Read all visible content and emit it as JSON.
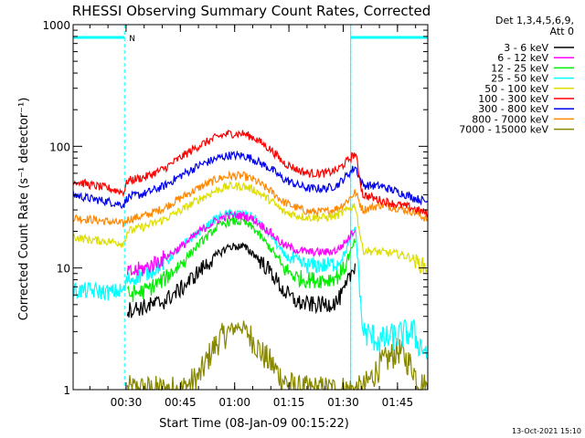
{
  "chart_data": {
    "type": "line",
    "title": "RHESSI Observing Summary Count Rates, Corrected",
    "xlabel": "Start Time (08-Jan-09 00:15:22)",
    "ylabel": "Corrected Count Rate (s⁻¹ detector⁻¹)",
    "y_scale": "log",
    "ylim": [
      1,
      1000
    ],
    "xlim_minutes": [
      0,
      98
    ],
    "x_ticks": [
      {
        "t": 14.63,
        "label": "00:30"
      },
      {
        "t": 29.63,
        "label": "00:45"
      },
      {
        "t": 44.63,
        "label": "01:00"
      },
      {
        "t": 59.63,
        "label": "01:15"
      },
      {
        "t": 74.63,
        "label": "01:30"
      },
      {
        "t": 89.63,
        "label": "01:45"
      }
    ],
    "y_ticks": [
      {
        "v": 1,
        "label": "1"
      },
      {
        "v": 10,
        "label": "10"
      },
      {
        "v": 100,
        "label": "100"
      },
      {
        "v": 1000,
        "label": "1000"
      }
    ],
    "detectors_label": "Det 1,3,4,5,6,9,",
    "attenuator_label": "Att 0",
    "legend_position": "right",
    "night_marker_label": "N",
    "timestamp": "13-Oct-2021 15:10",
    "series": [
      {
        "name": "3 - 6 keV",
        "color": "#000000",
        "x": [
          15,
          20,
          25,
          30,
          35,
          40,
          43,
          47,
          50,
          55,
          58,
          62,
          65,
          70,
          73,
          75,
          78
        ],
        "values": [
          4.5,
          4.8,
          5.3,
          6.8,
          9.5,
          13,
          15,
          15,
          13,
          9,
          6.5,
          5.2,
          5,
          5,
          5.3,
          6.5,
          11
        ]
      },
      {
        "name": "6 - 12 keV",
        "color": "#ff00ff",
        "x": [
          15,
          20,
          25,
          30,
          35,
          40,
          43,
          47,
          50,
          55,
          58,
          62,
          65,
          70,
          73,
          75,
          78
        ],
        "values": [
          9,
          10,
          12,
          15,
          20,
          25,
          27,
          27,
          25,
          19,
          15.5,
          14,
          13.5,
          13.5,
          14,
          16,
          21
        ]
      },
      {
        "name": "12 - 25 keV",
        "color": "#00ee00",
        "x": [
          15,
          20,
          25,
          30,
          35,
          40,
          43,
          47,
          50,
          55,
          58,
          62,
          65,
          70,
          73,
          75,
          78
        ],
        "values": [
          6,
          6.5,
          8,
          11,
          16,
          22,
          24,
          24,
          21,
          14,
          10,
          8.3,
          8,
          8,
          8.5,
          10,
          17
        ]
      },
      {
        "name": "25 - 50 keV",
        "color": "#00ffff",
        "x": [
          0,
          5,
          10,
          14,
          15,
          20,
          25,
          30,
          35,
          40,
          43,
          47,
          50,
          55,
          58,
          62,
          65,
          70,
          73,
          75,
          78,
          80,
          85,
          90,
          94,
          95,
          98
        ],
        "values": [
          6.5,
          6.5,
          6.3,
          6.5,
          8,
          9,
          11,
          15,
          20,
          26,
          28,
          28,
          26,
          18,
          13,
          11,
          10.5,
          10.5,
          11,
          13,
          22,
          3,
          2.5,
          2.8,
          3,
          2.5,
          2
        ]
      },
      {
        "name": "50 - 100 keV",
        "color": "#dddd00",
        "x": [
          0,
          5,
          10,
          14,
          15,
          20,
          25,
          30,
          35,
          40,
          43,
          47,
          50,
          55,
          58,
          62,
          65,
          70,
          73,
          75,
          78,
          80,
          85,
          90,
          94,
          95,
          98
        ],
        "values": [
          18,
          17,
          16.5,
          16,
          20,
          22,
          25,
          30,
          37,
          44,
          47,
          47,
          44,
          35,
          29,
          27,
          26,
          26,
          27,
          29,
          33,
          14,
          13.5,
          13,
          12,
          11,
          10
        ]
      },
      {
        "name": "100 - 300 keV",
        "color": "#ff0000",
        "x": [
          0,
          5,
          10,
          14,
          15,
          20,
          25,
          30,
          35,
          40,
          43,
          47,
          50,
          55,
          58,
          62,
          65,
          70,
          73,
          75,
          78,
          80,
          85,
          90,
          94,
          95,
          98
        ],
        "values": [
          52,
          48,
          45,
          42,
          52,
          56,
          65,
          82,
          102,
          120,
          127,
          127,
          118,
          92,
          74,
          64,
          60,
          60,
          64,
          72,
          88,
          40,
          36,
          33,
          31,
          30,
          28
        ]
      },
      {
        "name": "300 - 800 keV",
        "color": "#0000ee",
        "x": [
          0,
          5,
          10,
          14,
          15,
          20,
          25,
          30,
          35,
          40,
          43,
          47,
          50,
          55,
          58,
          62,
          65,
          70,
          73,
          75,
          78,
          80,
          85,
          90,
          94,
          95,
          98
        ],
        "values": [
          40,
          37,
          35,
          33,
          38,
          41,
          47,
          58,
          70,
          80,
          84,
          84,
          78,
          64,
          54,
          48,
          45,
          45,
          48,
          55,
          68,
          48,
          47,
          42,
          38,
          37,
          35
        ]
      },
      {
        "name": "800 - 7000 keV",
        "color": "#ff8800",
        "x": [
          0,
          5,
          10,
          14,
          15,
          20,
          25,
          30,
          35,
          40,
          43,
          47,
          50,
          55,
          58,
          62,
          65,
          70,
          73,
          75,
          78,
          80,
          85,
          90,
          94,
          95,
          98
        ],
        "values": [
          26,
          25,
          24,
          23,
          25,
          27,
          31,
          38,
          46,
          54,
          57,
          57,
          53,
          42,
          35,
          31,
          29,
          29,
          31,
          34,
          42,
          30,
          33,
          31,
          29,
          28,
          25
        ]
      },
      {
        "name": "7000 - 15000 keV",
        "color": "#888800",
        "x": [
          15,
          20,
          25,
          30,
          35,
          38,
          40,
          43,
          46,
          48,
          50,
          52,
          55,
          58,
          62,
          65,
          70,
          75,
          78,
          80,
          85,
          90,
          94,
          95,
          98
        ],
        "values": [
          1,
          1,
          1,
          1,
          1.3,
          2,
          2.5,
          3,
          3.4,
          3,
          2.5,
          2,
          1.6,
          1.2,
          1,
          1,
          1,
          1,
          1,
          1,
          1.6,
          2.1,
          1.5,
          1.2,
          1
        ]
      }
    ],
    "night_intervals_minutes": [
      [
        0,
        14.2
      ],
      [
        76.7,
        98
      ]
    ],
    "saa_shading": [
      [
        0,
        14.2
      ],
      [
        76.7,
        98
      ]
    ]
  }
}
